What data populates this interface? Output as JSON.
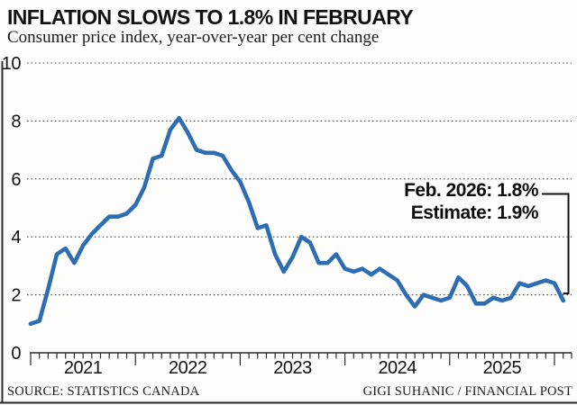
{
  "header": {
    "title": "INFLATION SLOWS TO 1.8% IN FEBRUARY",
    "subtitle": "Consumer price index, year-over-year per cent change"
  },
  "annotation": {
    "line1": "Feb. 2026: 1.8%",
    "line2": "Estimate: 1.9%"
  },
  "footer": {
    "source": "SOURCE: STATISTICS CANADA",
    "credit": "GIGI SUHANIC / FINANCIAL POST"
  },
  "colors": {
    "line": "#2e6db4",
    "grid": "#4d4d4d",
    "axis": "#2b2b2b",
    "text": "#111111",
    "callout": "#111111",
    "background": "#fdfdfc"
  },
  "chart_data": {
    "type": "line",
    "title": "INFLATION SLOWS TO 1.8% IN FEBRUARY",
    "subtitle": "Consumer price index, year-over-year per cent change",
    "xlabel": "",
    "ylabel": "per cent change (year-over-year)",
    "ylim": [
      0,
      10
    ],
    "y_ticks": [
      0,
      2,
      4,
      6,
      8,
      10
    ],
    "grid": "dotted-horizontal",
    "legend": "none",
    "x_start": "2021-01",
    "x_end": "2026-02",
    "x_tick_years": [
      "2021",
      "2022",
      "2023",
      "2024",
      "2025"
    ],
    "series": [
      {
        "name": "Consumer price index YoY % change",
        "monthly_values": [
          1.0,
          1.1,
          2.2,
          3.4,
          3.6,
          3.1,
          3.7,
          4.1,
          4.4,
          4.7,
          4.7,
          4.8,
          5.1,
          5.7,
          6.7,
          6.8,
          7.7,
          8.1,
          7.6,
          7.0,
          6.9,
          6.9,
          6.8,
          6.3,
          5.9,
          5.2,
          4.3,
          4.4,
          3.4,
          2.8,
          3.3,
          4.0,
          3.8,
          3.1,
          3.1,
          3.4,
          2.9,
          2.8,
          2.9,
          2.7,
          2.9,
          2.7,
          2.5,
          2.0,
          1.6,
          2.0,
          1.9,
          1.8,
          1.9,
          2.6,
          2.3,
          1.7,
          1.7,
          1.9,
          1.8,
          1.9,
          2.4,
          2.3,
          2.4,
          2.5,
          2.4,
          1.8
        ]
      }
    ],
    "last_point": {
      "label": "Feb. 2026",
      "value": 1.8,
      "estimate": 1.9
    }
  }
}
